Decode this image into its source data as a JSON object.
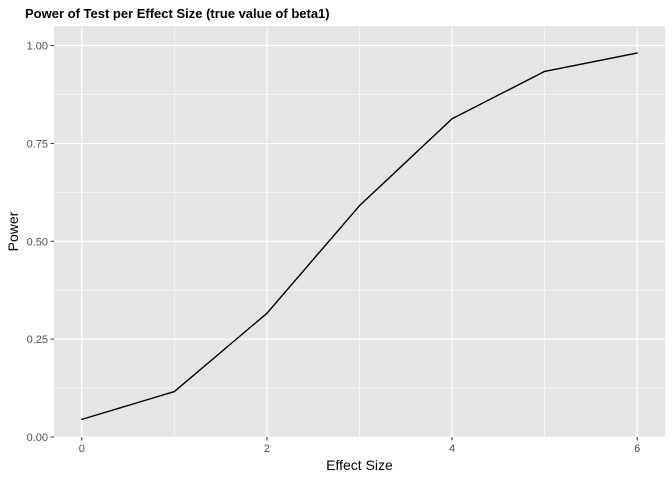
{
  "chart_data": {
    "type": "line",
    "title": "Power of Test per Effect Size (true value of beta1)",
    "xlabel": "Effect Size",
    "ylabel": "Power",
    "x": [
      0,
      1,
      2,
      3,
      4,
      5,
      6
    ],
    "series": [
      {
        "values": [
          0.045,
          0.116,
          0.316,
          0.591,
          0.813,
          0.934,
          0.981
        ]
      }
    ],
    "xlim": [
      -0.3,
      6.3
    ],
    "ylim": [
      0,
      1.05
    ],
    "x_ticks": [
      0,
      2,
      4,
      6
    ],
    "x_tick_labels": [
      "0",
      "2",
      "4",
      "6"
    ],
    "y_ticks": [
      0,
      0.25,
      0.5,
      0.75,
      1.0
    ],
    "y_tick_labels": [
      "0.00",
      "0.25",
      "0.50",
      "0.75",
      "1.00"
    ],
    "grid": true,
    "colors": {
      "panel_background": "#e5e5e5",
      "grid": "#ffffff",
      "line": "#000000",
      "tick_text": "#4d4d4d",
      "tick_mark": "#333333"
    }
  }
}
